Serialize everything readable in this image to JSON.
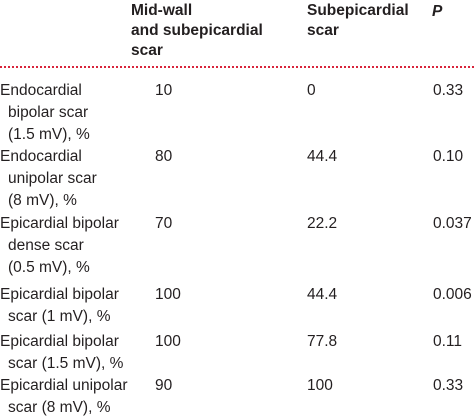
{
  "headers": {
    "mid_wall": [
      "Mid-wall",
      "and subepicardial",
      "scar"
    ],
    "subepicardial": [
      "Subepicardial",
      "scar"
    ],
    "p": "P"
  },
  "rows": [
    {
      "label_lines": [
        "Endocardial",
        "bipolar scar",
        "(1.5 mV), %"
      ],
      "mid_wall": "10",
      "subepicardial": "0",
      "p": "0.33"
    },
    {
      "label_lines": [
        "Endocardial",
        "unipolar scar",
        "(8 mV), %"
      ],
      "mid_wall": "80",
      "subepicardial": "44.4",
      "p": "0.10"
    },
    {
      "label_lines": [
        "Epicardial bipolar",
        "dense scar",
        "(0.5 mV), %"
      ],
      "mid_wall": "70",
      "subepicardial": "22.2",
      "p": "0.037"
    },
    {
      "label_lines": [
        "Epicardial bipolar",
        "scar (1 mV), %"
      ],
      "mid_wall": "100",
      "subepicardial": "44.4",
      "p": "0.006"
    },
    {
      "label_lines": [
        "Epicardial bipolar",
        "scar (1.5 mV), %"
      ],
      "mid_wall": "100",
      "subepicardial": "77.8",
      "p": "0.11"
    },
    {
      "label_lines": [
        "Epicardial unipolar",
        "scar (8 mV), %"
      ],
      "mid_wall": "90",
      "subepicardial": "100",
      "p": "0.33"
    }
  ]
}
